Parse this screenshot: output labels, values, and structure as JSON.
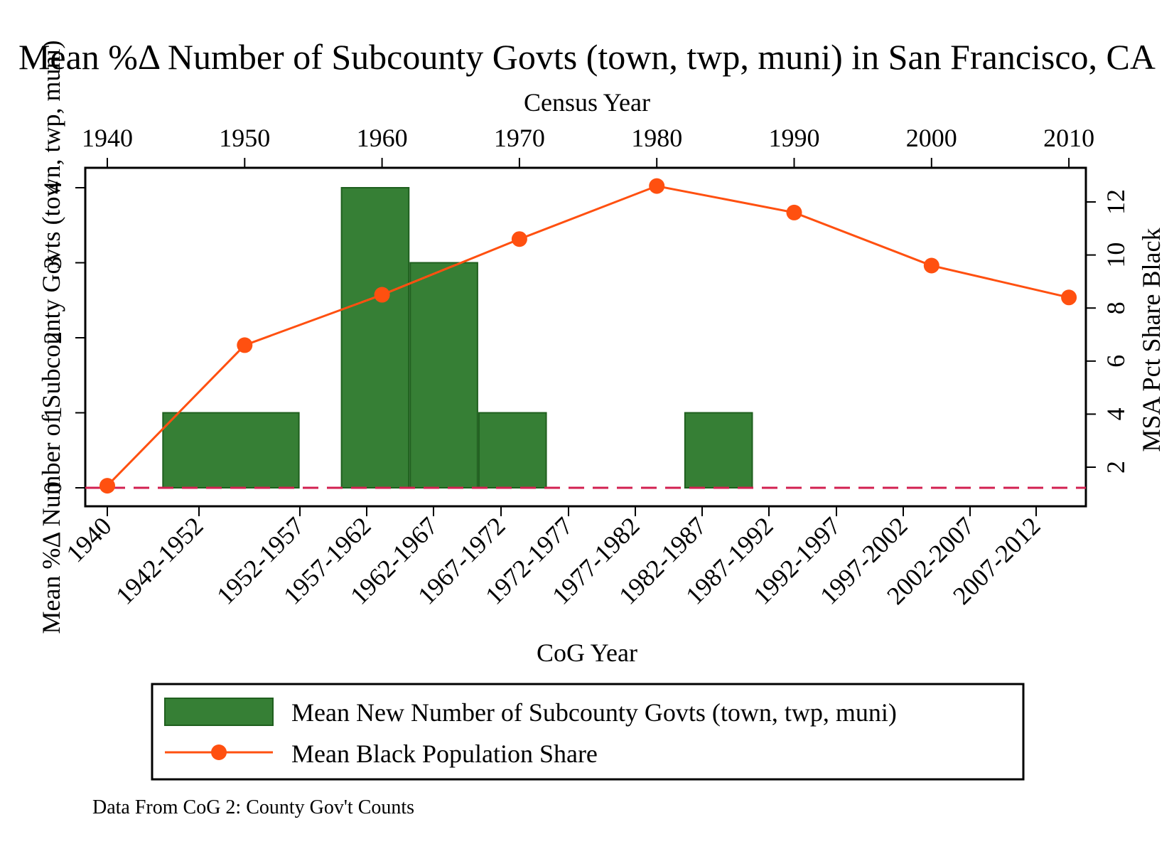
{
  "chart_data": {
    "type": "bar",
    "title": "Mean %Δ Number of Subcounty Govts (town, twp, muni) in San Francisco, CA",
    "xlabel": "CoG Year",
    "x2label": "Census Year",
    "ylabel": "Mean %Δ Number of Subcounty Govts (town, twp, muni)",
    "y2label": "MSA Pct Share Black",
    "note": "Data From CoG 2: County Gov't Counts",
    "categories": [
      "1940",
      "1942-1952",
      "1952-1957",
      "1957-1962",
      "1962-1967",
      "1967-1972",
      "1972-1977",
      "1977-1982",
      "1982-1987",
      "1987-1992",
      "1992-1997",
      "1997-2002",
      "2002-2007",
      "2007-2012"
    ],
    "x2_ticks": [
      "1940",
      "1950",
      "1960",
      "1970",
      "1980",
      "1990",
      "2000",
      "2010"
    ],
    "y_ticks": [
      "0",
      "1",
      "2",
      "3",
      "4"
    ],
    "y2_ticks": [
      "2",
      "4",
      "6",
      "8",
      "10",
      "12"
    ],
    "ylim": [
      -0.25,
      4.25
    ],
    "y2lim": [
      0.8,
      13.6
    ],
    "grid": false,
    "legend_position": "bottom",
    "series": [
      {
        "name": "Mean New Number of Subcounty Govts (town, twp, muni)",
        "type": "bar",
        "axis": "left",
        "color": "#367f35",
        "bars": [
          {
            "start": 1944,
            "end": 1954,
            "value": 1
          },
          {
            "start": 1957,
            "end": 1962,
            "value": 4
          },
          {
            "start": 1962,
            "end": 1967,
            "value": 3
          },
          {
            "start": 1967,
            "end": 1972,
            "value": 1
          },
          {
            "start": 1982,
            "end": 1987,
            "value": 1
          }
        ]
      },
      {
        "name": "Mean Black Population Share",
        "type": "line",
        "axis": "right",
        "color": "#ff5010",
        "x": [
          1940,
          1950,
          1960,
          1970,
          1980,
          1990,
          2000,
          2010
        ],
        "values": [
          1.3,
          6.6,
          8.5,
          10.6,
          12.6,
          11.6,
          9.6,
          8.4
        ]
      }
    ],
    "reference_line": {
      "y": 0,
      "style": "dashed",
      "color": "#d22050"
    }
  }
}
